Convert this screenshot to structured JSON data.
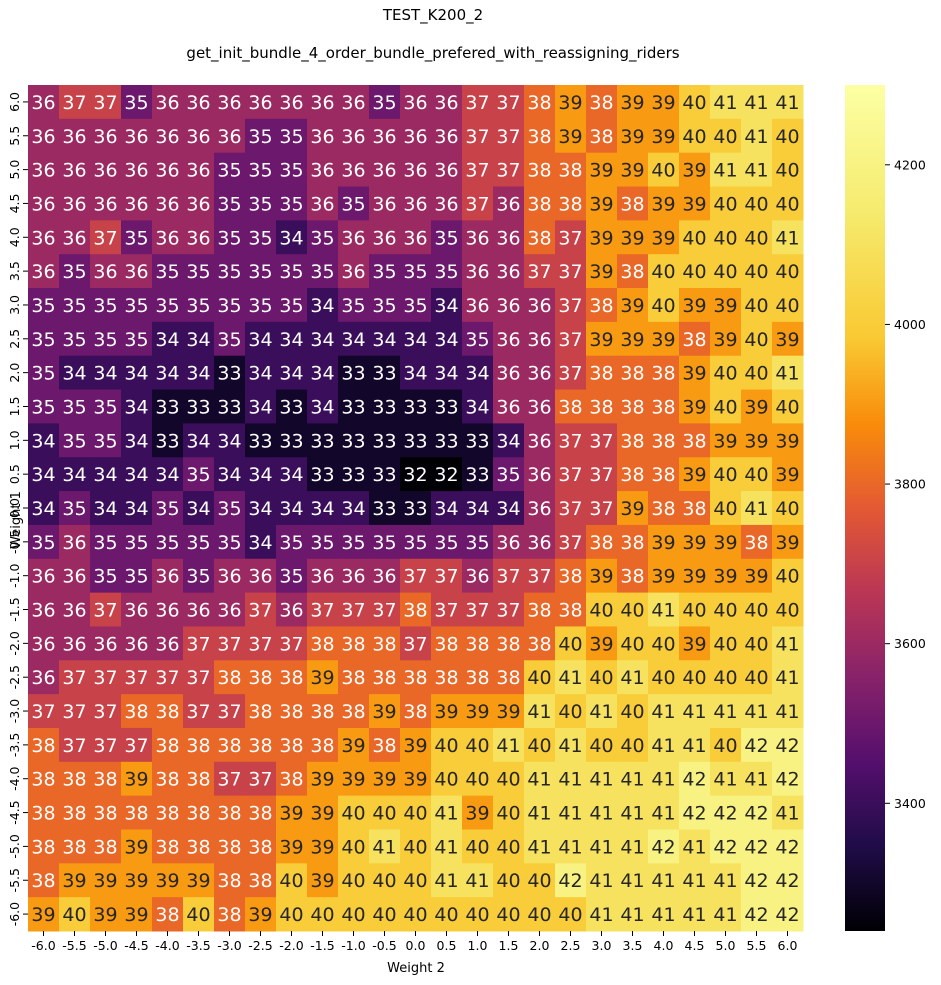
{
  "chart_data": {
    "type": "heatmap",
    "title": "TEST_K200_2",
    "subtitle": "get_init_bundle_4_order_bundle_prefered_with_reassigning_riders",
    "xlabel": "Weight 2",
    "ylabel": "Weight 1",
    "x_categories": [
      "-6.0",
      "-5.5",
      "-5.0",
      "-4.5",
      "-4.0",
      "-3.5",
      "-3.0",
      "-2.5",
      "-2.0",
      "-1.5",
      "-1.0",
      "-0.5",
      "0.0",
      "0.5",
      "1.0",
      "1.5",
      "2.0",
      "2.5",
      "3.0",
      "3.5",
      "4.0",
      "4.5",
      "5.0",
      "5.5",
      "6.0"
    ],
    "y_categories": [
      "6.0",
      "5.5",
      "5.0",
      "4.5",
      "4.0",
      "3.5",
      "3.0",
      "2.5",
      "2.0",
      "1.5",
      "1.0",
      "0.5",
      "0.0",
      "-0.5",
      "-1.0",
      "-1.5",
      "-2.0",
      "-2.5",
      "-3.0",
      "-3.5",
      "-4.0",
      "-4.5",
      "-5.0",
      "-5.5",
      "-6.0"
    ],
    "values": [
      [
        36,
        37,
        37,
        35,
        36,
        36,
        36,
        36,
        36,
        36,
        36,
        35,
        36,
        36,
        37,
        37,
        38,
        39,
        38,
        39,
        39,
        40,
        41,
        41,
        41
      ],
      [
        36,
        36,
        36,
        36,
        36,
        36,
        36,
        35,
        35,
        36,
        36,
        36,
        36,
        36,
        37,
        37,
        38,
        39,
        38,
        39,
        39,
        40,
        40,
        41,
        40
      ],
      [
        36,
        36,
        36,
        36,
        36,
        36,
        35,
        35,
        35,
        36,
        36,
        36,
        36,
        36,
        37,
        37,
        38,
        38,
        39,
        39,
        40,
        39,
        41,
        41,
        40
      ],
      [
        36,
        36,
        36,
        36,
        36,
        36,
        35,
        35,
        35,
        36,
        35,
        36,
        36,
        36,
        37,
        36,
        38,
        38,
        39,
        38,
        39,
        39,
        40,
        40,
        40
      ],
      [
        36,
        36,
        37,
        35,
        36,
        36,
        35,
        35,
        34,
        35,
        36,
        36,
        36,
        35,
        36,
        36,
        38,
        37,
        39,
        39,
        39,
        40,
        40,
        40,
        41
      ],
      [
        36,
        35,
        36,
        36,
        35,
        35,
        35,
        35,
        35,
        35,
        36,
        35,
        35,
        35,
        36,
        36,
        37,
        37,
        39,
        38,
        40,
        40,
        40,
        40,
        40
      ],
      [
        35,
        35,
        35,
        35,
        35,
        35,
        35,
        35,
        35,
        34,
        35,
        35,
        35,
        34,
        36,
        36,
        36,
        37,
        38,
        39,
        40,
        39,
        39,
        40,
        40
      ],
      [
        35,
        35,
        35,
        35,
        34,
        34,
        35,
        34,
        34,
        34,
        34,
        34,
        34,
        34,
        35,
        36,
        36,
        37,
        39,
        39,
        39,
        38,
        39,
        40,
        39
      ],
      [
        35,
        34,
        34,
        34,
        34,
        34,
        33,
        34,
        34,
        34,
        33,
        33,
        34,
        34,
        34,
        36,
        36,
        37,
        38,
        38,
        38,
        39,
        40,
        40,
        41
      ],
      [
        35,
        35,
        35,
        34,
        33,
        33,
        33,
        34,
        33,
        34,
        33,
        33,
        33,
        33,
        34,
        36,
        36,
        38,
        38,
        38,
        38,
        39,
        40,
        39,
        40
      ],
      [
        34,
        35,
        35,
        34,
        33,
        34,
        34,
        33,
        33,
        33,
        33,
        33,
        33,
        33,
        33,
        34,
        36,
        37,
        37,
        38,
        38,
        38,
        39,
        39,
        39
      ],
      [
        34,
        34,
        34,
        34,
        34,
        35,
        34,
        34,
        34,
        33,
        33,
        33,
        32,
        32,
        33,
        35,
        36,
        37,
        37,
        38,
        38,
        39,
        40,
        40,
        39
      ],
      [
        34,
        35,
        34,
        34,
        35,
        34,
        35,
        34,
        34,
        34,
        34,
        33,
        33,
        34,
        34,
        34,
        36,
        37,
        37,
        39,
        38,
        38,
        40,
        41,
        40
      ],
      [
        35,
        36,
        35,
        35,
        35,
        35,
        35,
        34,
        35,
        35,
        35,
        35,
        35,
        35,
        35,
        36,
        36,
        37,
        38,
        38,
        39,
        39,
        39,
        38,
        39
      ],
      [
        36,
        36,
        35,
        35,
        36,
        35,
        36,
        36,
        35,
        36,
        36,
        36,
        37,
        37,
        36,
        37,
        37,
        38,
        39,
        38,
        39,
        39,
        39,
        39,
        40
      ],
      [
        36,
        36,
        37,
        36,
        36,
        36,
        36,
        37,
        36,
        37,
        37,
        37,
        38,
        37,
        37,
        37,
        38,
        38,
        40,
        40,
        41,
        40,
        40,
        40,
        40
      ],
      [
        36,
        36,
        36,
        36,
        36,
        37,
        37,
        37,
        37,
        38,
        38,
        38,
        37,
        38,
        38,
        38,
        38,
        40,
        39,
        40,
        40,
        39,
        40,
        40,
        41
      ],
      [
        36,
        37,
        37,
        37,
        37,
        37,
        38,
        38,
        38,
        39,
        38,
        38,
        38,
        38,
        38,
        38,
        40,
        41,
        40,
        41,
        40,
        40,
        40,
        40,
        41
      ],
      [
        37,
        37,
        37,
        38,
        38,
        37,
        37,
        38,
        38,
        38,
        38,
        39,
        38,
        39,
        39,
        39,
        41,
        40,
        41,
        40,
        41,
        41,
        41,
        41,
        41
      ],
      [
        38,
        37,
        37,
        37,
        38,
        38,
        38,
        38,
        38,
        38,
        39,
        38,
        39,
        40,
        40,
        41,
        40,
        41,
        40,
        40,
        41,
        41,
        40,
        42,
        42
      ],
      [
        38,
        38,
        38,
        39,
        38,
        38,
        37,
        37,
        38,
        39,
        39,
        39,
        39,
        40,
        40,
        40,
        41,
        41,
        41,
        41,
        41,
        42,
        41,
        41,
        42
      ],
      [
        38,
        38,
        38,
        38,
        38,
        38,
        38,
        38,
        39,
        39,
        40,
        40,
        40,
        41,
        39,
        40,
        41,
        41,
        41,
        41,
        41,
        42,
        42,
        42,
        41
      ],
      [
        38,
        38,
        38,
        39,
        38,
        38,
        38,
        38,
        39,
        39,
        40,
        41,
        40,
        41,
        40,
        40,
        41,
        41,
        41,
        41,
        42,
        41,
        42,
        42,
        42
      ],
      [
        38,
        39,
        39,
        39,
        39,
        39,
        38,
        38,
        40,
        39,
        40,
        40,
        40,
        41,
        41,
        40,
        40,
        42,
        41,
        41,
        41,
        41,
        41,
        42,
        42
      ],
      [
        39,
        40,
        39,
        39,
        38,
        40,
        38,
        39,
        40,
        40,
        40,
        40,
        40,
        40,
        40,
        40,
        40,
        40,
        41,
        41,
        41,
        41,
        41,
        42,
        42
      ]
    ],
    "colormap": "inferno",
    "colorbar": {
      "range": [
        3240,
        4300
      ],
      "ticks": [
        3400,
        3600,
        3800,
        4000,
        4200
      ]
    },
    "grid": false,
    "legend": "colorbar-right"
  }
}
